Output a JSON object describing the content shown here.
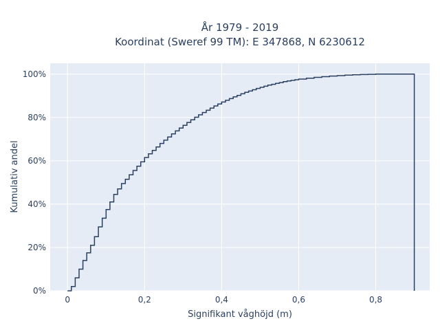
{
  "chart_data": {
    "type": "line",
    "line_shape": "step",
    "title_line1": "År 1979 - 2019",
    "title_line2": "Koordinat (Sweref 99 TM): E 347868, N 6230612",
    "xlabel": "Signifikant våghöjd (m)",
    "ylabel": "Kumulativ andel",
    "xlim": [
      -0.045,
      0.94
    ],
    "ylim": [
      0,
      1.05
    ],
    "x_ticks": [
      0,
      0.2,
      0.4,
      0.6,
      0.8
    ],
    "x_tick_labels": [
      "0",
      "0,2",
      "0,4",
      "0,6",
      "0,8"
    ],
    "y_ticks": [
      0,
      0.2,
      0.4,
      0.6,
      0.8,
      1.0
    ],
    "y_tick_labels": [
      "0%",
      "20%",
      "40%",
      "60%",
      "80%",
      "100%"
    ],
    "grid": true,
    "line_color": "#2a3f5f",
    "background_color": "#e5ecf6",
    "series": [
      {
        "x": [
          0.0,
          0.01,
          0.02,
          0.03,
          0.04,
          0.05,
          0.06,
          0.07,
          0.08,
          0.09,
          0.1,
          0.11,
          0.12,
          0.13,
          0.14,
          0.15,
          0.16,
          0.17,
          0.18,
          0.19,
          0.2,
          0.21,
          0.22,
          0.23,
          0.24,
          0.25,
          0.26,
          0.27,
          0.28,
          0.29,
          0.3,
          0.31,
          0.32,
          0.33,
          0.34,
          0.35,
          0.36,
          0.37,
          0.38,
          0.39,
          0.4,
          0.41,
          0.42,
          0.43,
          0.44,
          0.45,
          0.46,
          0.47,
          0.48,
          0.49,
          0.5,
          0.51,
          0.52,
          0.53,
          0.54,
          0.55,
          0.56,
          0.57,
          0.58,
          0.59,
          0.6,
          0.62,
          0.64,
          0.66,
          0.68,
          0.7,
          0.72,
          0.74,
          0.76,
          0.78,
          0.8,
          0.85,
          0.9
        ],
        "y": [
          0.0,
          0.02,
          0.06,
          0.1,
          0.14,
          0.175,
          0.21,
          0.25,
          0.295,
          0.335,
          0.375,
          0.41,
          0.445,
          0.47,
          0.495,
          0.515,
          0.535,
          0.555,
          0.575,
          0.595,
          0.615,
          0.632,
          0.648,
          0.664,
          0.68,
          0.695,
          0.71,
          0.724,
          0.738,
          0.751,
          0.764,
          0.777,
          0.789,
          0.801,
          0.812,
          0.823,
          0.833,
          0.843,
          0.853,
          0.862,
          0.871,
          0.879,
          0.887,
          0.895,
          0.902,
          0.909,
          0.916,
          0.922,
          0.928,
          0.934,
          0.939,
          0.944,
          0.949,
          0.953,
          0.957,
          0.961,
          0.965,
          0.968,
          0.971,
          0.974,
          0.977,
          0.981,
          0.985,
          0.988,
          0.991,
          0.993,
          0.995,
          0.997,
          0.998,
          0.999,
          1.0,
          1.0,
          1.0
        ]
      }
    ]
  }
}
